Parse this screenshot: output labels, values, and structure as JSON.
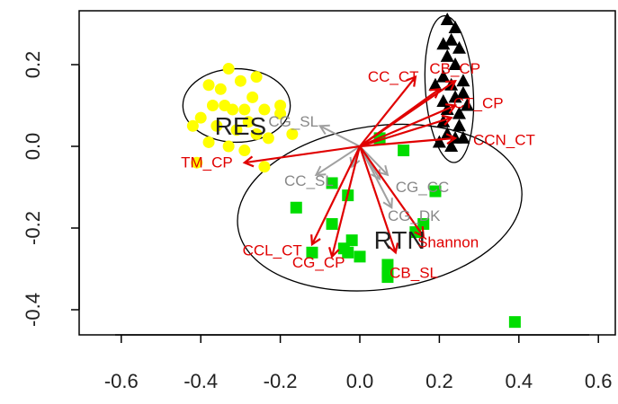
{
  "chart_data": {
    "type": "scatter",
    "title": "",
    "xlabel": "",
    "ylabel": "",
    "xlim": [
      -0.67,
      0.68
    ],
    "ylim": [
      -0.47,
      0.33
    ],
    "x_ticks": [
      -0.6,
      -0.4,
      -0.2,
      0.0,
      0.2,
      0.4,
      0.6
    ],
    "x_tick_labels": [
      "-0.6",
      "-0.4",
      "-0.2",
      "0.0",
      "0.2",
      "0.4",
      "0.6"
    ],
    "y_ticks": [
      -0.4,
      -0.2,
      0.0,
      0.2
    ],
    "y_tick_labels": [
      "-0.4",
      "-0.2",
      "0.0",
      "0.2"
    ],
    "grid": false,
    "colors": {
      "res": "#ffff00",
      "rtn": "#00dd00",
      "third": "#000000",
      "vector_red": "#e00000",
      "vector_gray": "#a0a0a0",
      "ellipse": "#000000"
    },
    "groups": [
      {
        "label": "RES",
        "marker": "circle",
        "color": "#ffff00",
        "ellipse": {
          "cx": -0.31,
          "cy": 0.1,
          "rx": 0.135,
          "ry": 0.09,
          "angle_deg": 0
        },
        "points": [
          [
            -0.33,
            0.19
          ],
          [
            -0.3,
            0.16
          ],
          [
            -0.26,
            0.17
          ],
          [
            -0.38,
            0.15
          ],
          [
            -0.35,
            0.14
          ],
          [
            -0.27,
            0.12
          ],
          [
            -0.32,
            0.09
          ],
          [
            -0.29,
            0.09
          ],
          [
            -0.24,
            0.09
          ],
          [
            -0.37,
            0.1
          ],
          [
            -0.34,
            0.1
          ],
          [
            -0.2,
            0.08
          ],
          [
            -0.4,
            0.07
          ],
          [
            -0.28,
            0.06
          ],
          [
            -0.36,
            0.05
          ],
          [
            -0.31,
            0.04
          ],
          [
            -0.42,
            0.05
          ],
          [
            -0.26,
            0.03
          ],
          [
            -0.23,
            0.02
          ],
          [
            -0.17,
            0.03
          ],
          [
            -0.2,
            0.1
          ],
          [
            -0.38,
            0.01
          ],
          [
            -0.33,
            0.0
          ],
          [
            -0.29,
            -0.01
          ],
          [
            -0.41,
            -0.04
          ],
          [
            -0.24,
            -0.05
          ]
        ]
      },
      {
        "label": "RTN",
        "marker": "square",
        "color": "#00dd00",
        "ellipse": {
          "cx": 0.05,
          "cy": -0.15,
          "rx": 0.36,
          "ry": 0.2,
          "angle_deg": -8
        },
        "points": [
          [
            0.05,
            0.02
          ],
          [
            0.11,
            -0.01
          ],
          [
            -0.07,
            -0.09
          ],
          [
            -0.03,
            -0.12
          ],
          [
            0.19,
            -0.11
          ],
          [
            -0.16,
            -0.15
          ],
          [
            -0.07,
            -0.19
          ],
          [
            0.16,
            -0.19
          ],
          [
            0.14,
            -0.21
          ],
          [
            -0.02,
            -0.23
          ],
          [
            -0.04,
            -0.25
          ],
          [
            -0.12,
            -0.26
          ],
          [
            -0.03,
            -0.26
          ],
          [
            0.0,
            -0.27
          ],
          [
            0.07,
            -0.29
          ],
          [
            0.07,
            -0.31
          ],
          [
            0.07,
            -0.32
          ],
          [
            0.39,
            -0.43
          ]
        ]
      },
      {
        "label": "",
        "marker": "triangle",
        "color": "#000000",
        "ellipse": {
          "cx": 0.225,
          "cy": 0.14,
          "rx": 0.06,
          "ry": 0.18,
          "angle_deg": -4
        },
        "points": [
          [
            0.22,
            0.31
          ],
          [
            0.24,
            0.29
          ],
          [
            0.23,
            0.26
          ],
          [
            0.21,
            0.25
          ],
          [
            0.25,
            0.24
          ],
          [
            0.22,
            0.22
          ],
          [
            0.24,
            0.2
          ],
          [
            0.21,
            0.17
          ],
          [
            0.26,
            0.16
          ],
          [
            0.19,
            0.15
          ],
          [
            0.23,
            0.15
          ],
          [
            0.26,
            0.13
          ],
          [
            0.24,
            0.12
          ],
          [
            0.21,
            0.11
          ],
          [
            0.27,
            0.1
          ],
          [
            0.22,
            0.09
          ],
          [
            0.25,
            0.08
          ],
          [
            0.21,
            0.06
          ],
          [
            0.25,
            0.05
          ],
          [
            0.22,
            0.03
          ],
          [
            0.24,
            0.02
          ],
          [
            0.26,
            0.02
          ],
          [
            0.2,
            0.01
          ],
          [
            0.23,
            0.0
          ]
        ]
      }
    ],
    "origin": [
      0.0,
      0.0
    ],
    "vectors_red": [
      {
        "label": "CC_CT",
        "x": 0.14,
        "y": 0.17
      },
      {
        "label": "CB_CP",
        "x": 0.24,
        "y": 0.16
      },
      {
        "label": "CT_CP",
        "x": 0.24,
        "y": 0.1
      },
      {
        "label": "CCN_CT",
        "x": 0.24,
        "y": 0.02
      },
      {
        "label": "TM_CP",
        "x": -0.29,
        "y": -0.04
      },
      {
        "label": "CCL_CT",
        "x": -0.12,
        "y": -0.24
      },
      {
        "label": "CG_CP",
        "x": -0.07,
        "y": -0.27
      },
      {
        "label": "CB_SL",
        "x": 0.09,
        "y": -0.26
      },
      {
        "label": "Shannon",
        "x": 0.16,
        "y": -0.22
      },
      {
        "label": "",
        "x": 0.2,
        "y": 0.14
      },
      {
        "label": "",
        "x": 0.23,
        "y": 0.07
      }
    ],
    "vectors_gray": [
      {
        "label": "CG_SL",
        "x": -0.1,
        "y": 0.05
      },
      {
        "label": "CC_SL",
        "x": -0.11,
        "y": -0.07
      },
      {
        "label": "CG_CC",
        "x": 0.07,
        "y": -0.07
      },
      {
        "label": "CG_DK",
        "x": 0.08,
        "y": -0.15
      },
      {
        "label": "",
        "x": -0.02,
        "y": -0.05
      },
      {
        "label": "",
        "x": 0.05,
        "y": -0.08
      }
    ],
    "labels_red": [
      {
        "text": "CC_CT",
        "x": 0.02,
        "y": 0.17,
        "anchor": "start"
      },
      {
        "text": "CB_CP",
        "x": 0.175,
        "y": 0.19,
        "anchor": "start"
      },
      {
        "text": "CT_CP",
        "x": 0.235,
        "y": 0.105,
        "anchor": "start"
      },
      {
        "text": "CCN_CT",
        "x": 0.285,
        "y": 0.015,
        "anchor": "start"
      },
      {
        "text": "TM_CP",
        "x": -0.45,
        "y": -0.04,
        "anchor": "start"
      },
      {
        "text": "CCL_CT",
        "x": -0.295,
        "y": -0.255,
        "anchor": "start"
      },
      {
        "text": "CG_CP",
        "x": -0.17,
        "y": -0.285,
        "anchor": "start"
      },
      {
        "text": "CB_SL",
        "x": 0.075,
        "y": -0.31,
        "anchor": "start"
      },
      {
        "text": "Shannon",
        "x": 0.145,
        "y": -0.235,
        "anchor": "start"
      }
    ],
    "labels_gray": [
      {
        "text": "CG_SL",
        "x": -0.23,
        "y": 0.06,
        "anchor": "start"
      },
      {
        "text": "CC_SL",
        "x": -0.19,
        "y": -0.085,
        "anchor": "start"
      },
      {
        "text": "CG_CC",
        "x": 0.09,
        "y": -0.1,
        "anchor": "start"
      },
      {
        "text": "CG_DK",
        "x": 0.07,
        "y": -0.17,
        "anchor": "start"
      }
    ],
    "group_labels": [
      {
        "text": "RES",
        "x": -0.3,
        "y": 0.05
      },
      {
        "text": "RTN",
        "x": 0.1,
        "y": -0.23
      }
    ]
  }
}
